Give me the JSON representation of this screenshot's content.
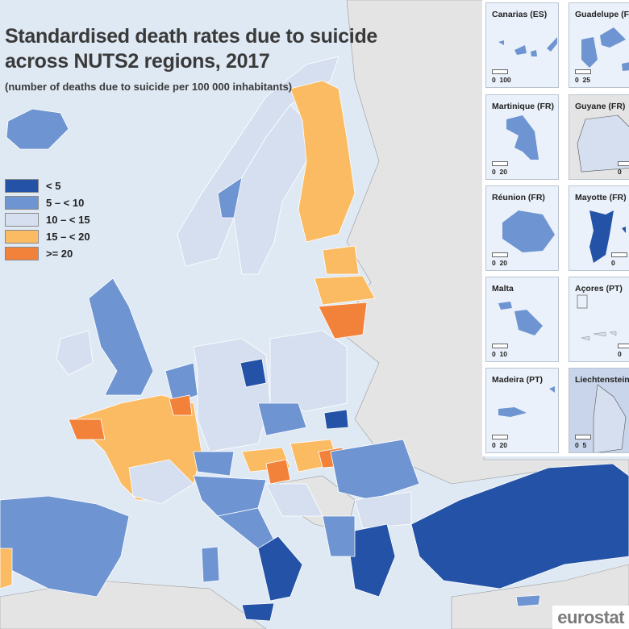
{
  "title_line1": "Standardised death rates due to suicide",
  "title_line2": "across NUTS2 regions, 2017",
  "subtitle": "(number of deaths due to suicide per 100 000 inhabitants)",
  "legend": [
    {
      "label": "< 5",
      "color": "#2452a6"
    },
    {
      "label": "5 – < 10",
      "color": "#6e94d2"
    },
    {
      "label": "10 – < 15",
      "color": "#d5dff0"
    },
    {
      "label": "15 – < 20",
      "color": "#fbbb63"
    },
    {
      "label": ">= 20",
      "color": "#f2823a"
    }
  ],
  "insets": [
    {
      "name": "Canarias (ES)",
      "scale_0": "0",
      "scale_max": "100"
    },
    {
      "name": "Guadelupe (FR)",
      "scale_0": "0",
      "scale_max": "25"
    },
    {
      "name": "Martinique (FR)",
      "scale_0": "0",
      "scale_max": "20"
    },
    {
      "name": "Guyane (FR)",
      "scale_0": "0",
      "scale_max": ""
    },
    {
      "name": "Réunion (FR)",
      "scale_0": "0",
      "scale_max": "20"
    },
    {
      "name": "Mayotte (FR)",
      "scale_0": "0",
      "scale_max": ""
    },
    {
      "name": "Malta",
      "scale_0": "0",
      "scale_max": "10"
    },
    {
      "name": "Açores (PT)",
      "scale_0": "0",
      "scale_max": ""
    },
    {
      "name": "Madeira (PT)",
      "scale_0": "0",
      "scale_max": "20"
    },
    {
      "name": "Liechtenstein",
      "scale_0": "0",
      "scale_max": "5"
    }
  ],
  "logo": "eurostat"
}
